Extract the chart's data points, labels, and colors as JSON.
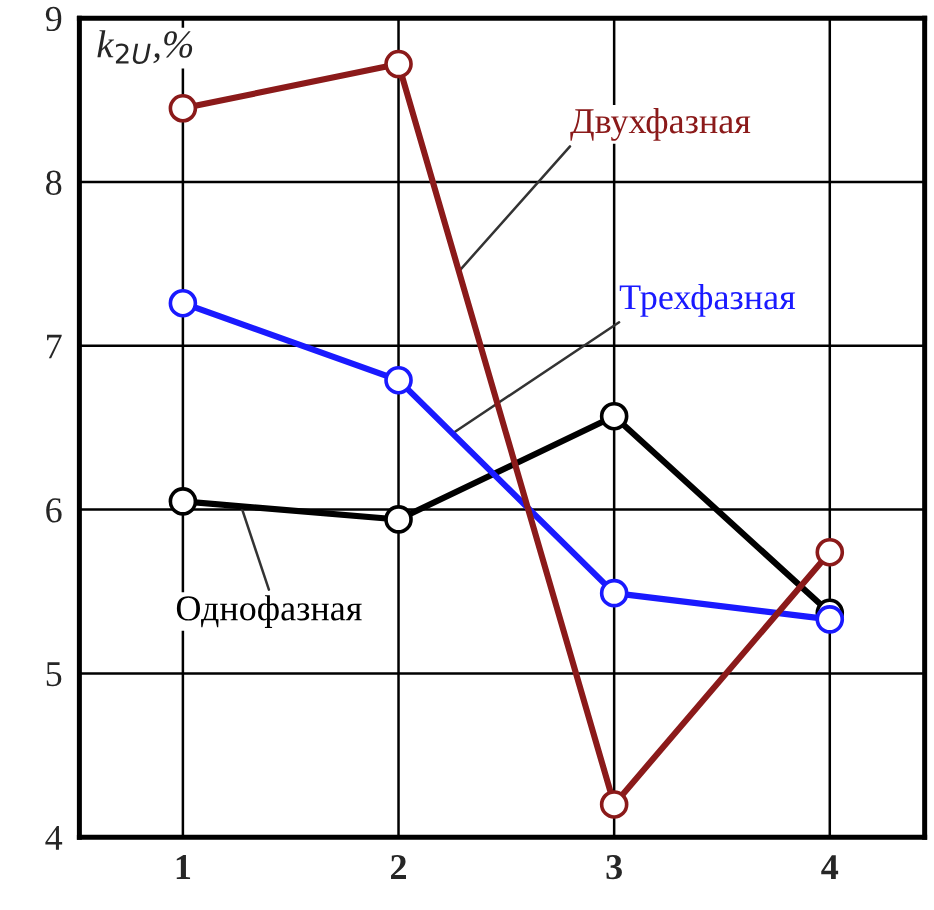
{
  "chart_data": {
    "type": "line",
    "ylabel": "k$_{2U}$,%",
    "categories": [
      "1",
      "2",
      "3",
      "4"
    ],
    "series": [
      {
        "name": "Двухфазная",
        "color": "#8b1a1a",
        "values": [
          8.45,
          8.72,
          4.2,
          5.74
        ]
      },
      {
        "name": "Трехфазная",
        "color": "#1a1aff",
        "values": [
          7.26,
          6.79,
          5.49,
          5.33
        ]
      },
      {
        "name": "Однофазная",
        "color": "#000000",
        "values": [
          6.05,
          5.94,
          6.57,
          5.37
        ]
      }
    ],
    "ylim": [
      4,
      9
    ],
    "yticks": [
      4,
      5,
      6,
      7,
      8,
      9
    ],
    "grid": true,
    "marker": "circle",
    "line_style": "solid",
    "legend": false
  }
}
